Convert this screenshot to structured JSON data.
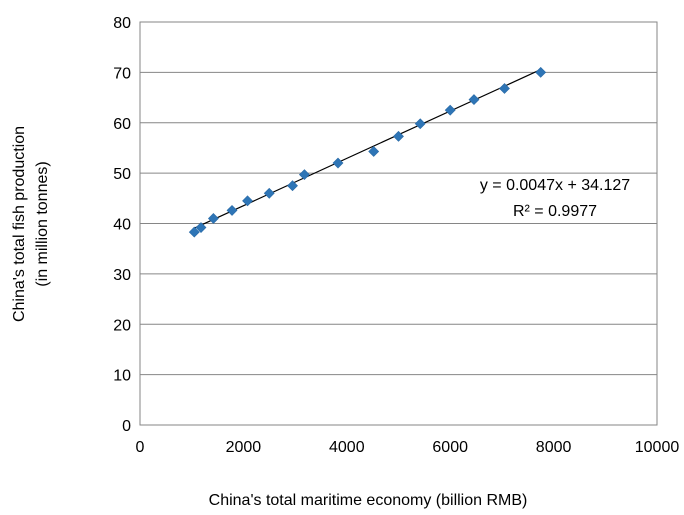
{
  "chart_data": {
    "type": "scatter",
    "title": "",
    "xlabel": "China's total maritime economy (billion RMB)",
    "ylabel_lines": [
      "China's total fish production",
      "(in million tonnes)"
    ],
    "xlim": [
      0,
      10000
    ],
    "ylim": [
      0,
      80
    ],
    "xticks": [
      0,
      2000,
      4000,
      6000,
      8000,
      10000
    ],
    "xtick_labels": [
      "0",
      "2000",
      "4000",
      "6000",
      "8000",
      "10000"
    ],
    "yticks": [
      0,
      10,
      20,
      30,
      40,
      50,
      60,
      70,
      80
    ],
    "ytick_labels": [
      "0",
      "10",
      "20",
      "30",
      "40",
      "50",
      "60",
      "70",
      "80"
    ],
    "grid": "horizontal",
    "legend": "none",
    "marker": "diamond",
    "marker_color": "#2e75b6",
    "series": [
      {
        "points": [
          [
            1050,
            38.3
          ],
          [
            1180,
            39.2
          ],
          [
            1420,
            41.0
          ],
          [
            1780,
            42.6
          ],
          [
            2080,
            44.5
          ],
          [
            2500,
            46.0
          ],
          [
            2950,
            47.5
          ],
          [
            3180,
            49.7
          ],
          [
            3830,
            52.0
          ],
          [
            4520,
            54.3
          ],
          [
            5000,
            57.3
          ],
          [
            5420,
            59.8
          ],
          [
            6000,
            62.5
          ],
          [
            6460,
            64.6
          ],
          [
            7050,
            66.8
          ],
          [
            7750,
            70.0
          ]
        ]
      }
    ],
    "trendline": {
      "type": "linear",
      "slope": 0.0047,
      "intercept": 34.127,
      "x_range": [
        1050,
        7750
      ],
      "color": "#000000",
      "equation_text": "y = 0.0047x + 34.127",
      "r2_text": "R² = 0.9977"
    }
  }
}
